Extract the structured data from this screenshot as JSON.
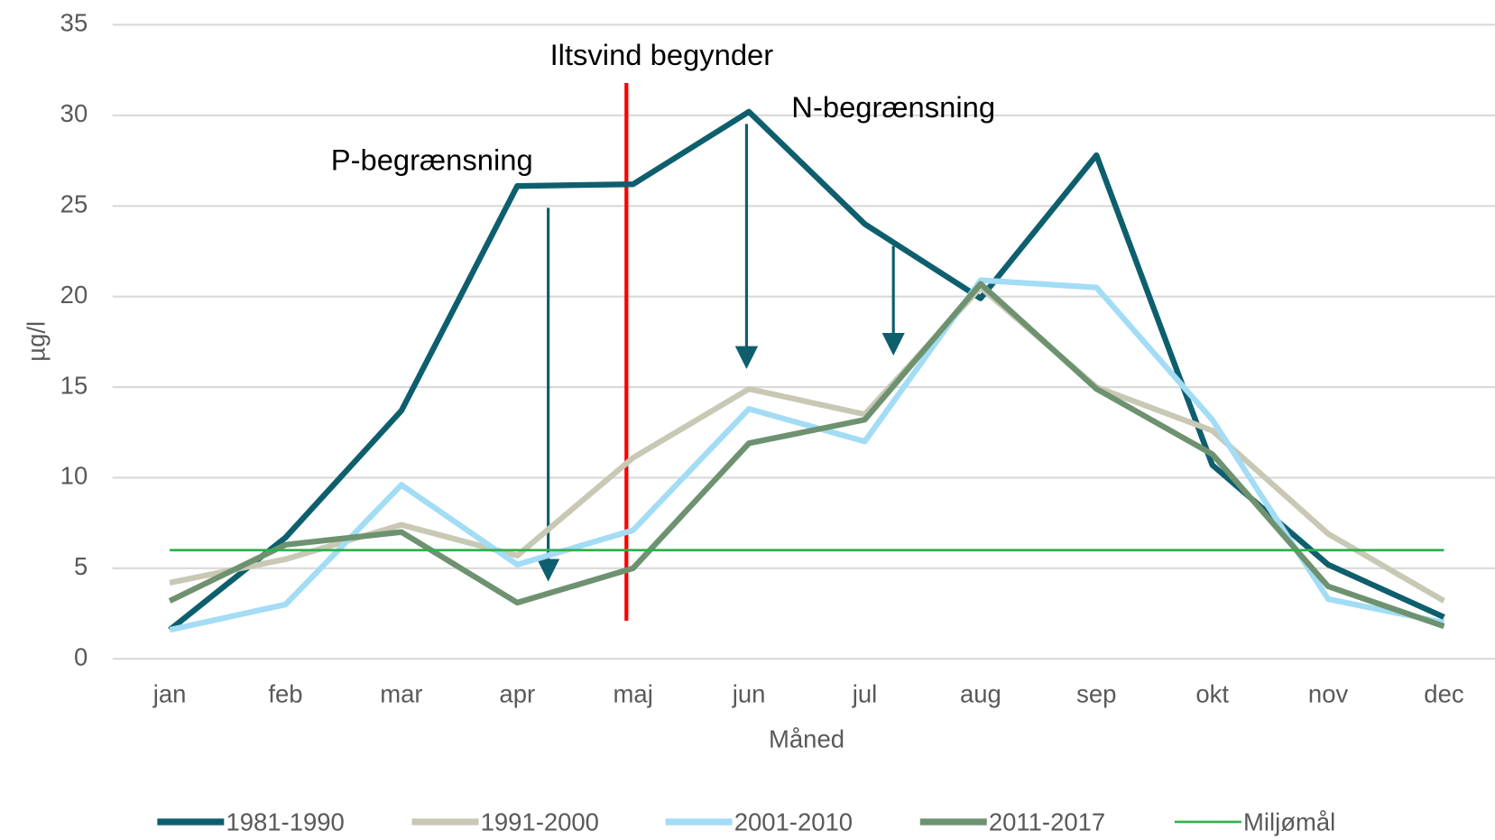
{
  "chart_data": {
    "type": "line",
    "categories": [
      "jan",
      "feb",
      "mar",
      "apr",
      "maj",
      "jun",
      "jul",
      "aug",
      "sep",
      "okt",
      "nov",
      "dec"
    ],
    "series": [
      {
        "name": "1981-1990",
        "color": "#0e5f6e",
        "values": [
          1.6,
          6.7,
          13.7,
          26.1,
          26.2,
          30.2,
          24.0,
          19.9,
          27.8,
          10.7,
          5.2,
          2.3
        ]
      },
      {
        "name": "1991-2000",
        "color": "#c9c8b4",
        "values": [
          4.2,
          5.5,
          7.4,
          5.7,
          11.1,
          14.9,
          13.5,
          20.5,
          15.0,
          12.6,
          6.9,
          3.2
        ]
      },
      {
        "name": "2001-2010",
        "color": "#a3dcf5",
        "values": [
          1.6,
          3.0,
          9.6,
          5.2,
          7.1,
          13.8,
          12.0,
          20.9,
          20.5,
          13.2,
          3.3,
          2.0
        ]
      },
      {
        "name": "2011-2017",
        "color": "#6e9270",
        "values": [
          3.2,
          6.3,
          7.0,
          3.1,
          5.0,
          11.9,
          13.2,
          20.7,
          14.9,
          11.3,
          4.0,
          1.8
        ]
      },
      {
        "name": "Miljømål",
        "color": "#2eb04d",
        "values": [
          6,
          6,
          6,
          6,
          6,
          6,
          6,
          6,
          6,
          6,
          6,
          6
        ]
      }
    ],
    "ylim": [
      0,
      35
    ],
    "yticks": [
      0,
      5,
      10,
      15,
      20,
      25,
      30,
      35
    ],
    "grid": true,
    "ylabel": "µg/l",
    "xlabel": "Måned",
    "legend": "bottom",
    "annotations": [
      "Iltsvind begynder",
      "P-begrænsning",
      "N-begrænsning"
    ]
  }
}
